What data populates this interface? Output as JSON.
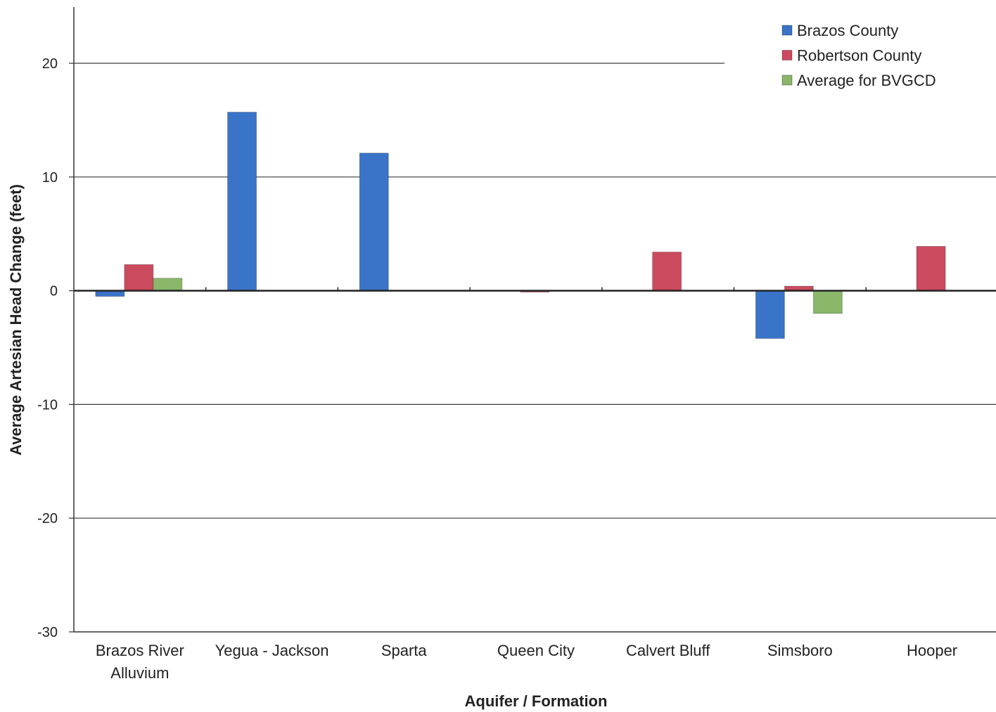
{
  "chart_data": {
    "type": "bar",
    "title": "",
    "xlabel": "Aquifer / Formation",
    "ylabel": "Average Artesian Head Change (feet)",
    "ylim": [
      -30,
      20
    ],
    "yticks": [
      -30,
      -20,
      -10,
      0,
      10,
      20
    ],
    "grid": true,
    "legend_position": "top-right",
    "categories": [
      [
        "Brazos River",
        "Alluvium"
      ],
      [
        "Yegua - Jackson"
      ],
      [
        "Sparta"
      ],
      [
        "Queen City"
      ],
      [
        "Calvert Bluff"
      ],
      [
        "Simsboro"
      ],
      [
        "Hooper"
      ]
    ],
    "series": [
      {
        "name": "Brazos County",
        "color": "#3a74c8",
        "values": [
          -0.5,
          15.7,
          12.1,
          null,
          null,
          -4.2,
          null
        ]
      },
      {
        "name": "Robertson County",
        "color": "#cc4a5e",
        "values": [
          2.3,
          null,
          null,
          -0.1,
          3.4,
          0.4,
          3.9
        ]
      },
      {
        "name": "Average for BVGCD",
        "color": "#8ab66a",
        "values": [
          1.1,
          null,
          null,
          null,
          null,
          -2.0,
          null
        ]
      }
    ]
  }
}
